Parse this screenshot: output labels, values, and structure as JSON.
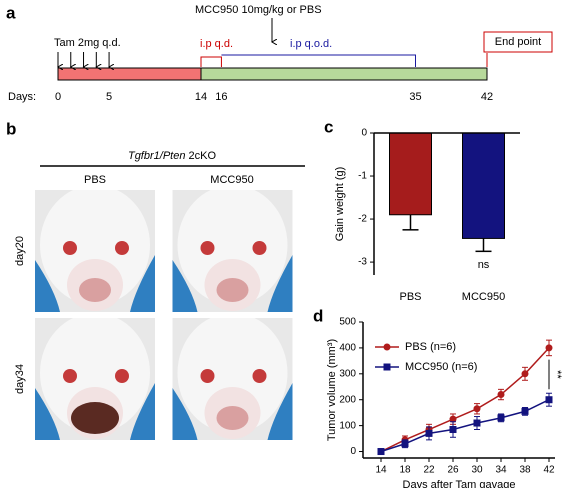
{
  "panel_a": {
    "label": "a",
    "treatment_label": "MCC950 10mg/kg or PBS",
    "tam_label": "Tam 2mg q.d.",
    "ip_qd": "i.p q.d.",
    "ip_qod": "i.p q.o.d.",
    "end_point": "End point",
    "days_label": "Days:",
    "days": [
      0,
      5,
      14,
      16,
      35,
      42
    ]
  },
  "panel_b": {
    "label": "b",
    "genotype_italic": "Tgfbr1/Pten",
    "genotype_suffix": "2cKO",
    "columns": [
      "PBS",
      "MCC950"
    ],
    "rows": [
      "day20",
      "day34"
    ]
  },
  "chart_data": [
    {
      "type": "bar",
      "panel_label": "c",
      "ylabel": "Gain weight (g)",
      "categories": [
        "PBS",
        "MCC950"
      ],
      "values": [
        -1.9,
        -2.45
      ],
      "errors": [
        0.35,
        0.3
      ],
      "colors": [
        "#a51c1c",
        "#13137f"
      ],
      "ylim": [
        -3.3,
        0
      ],
      "yticks": [
        0,
        -1,
        -2,
        -3
      ],
      "annotation": "ns"
    },
    {
      "type": "line",
      "panel_label": "d",
      "xlabel": "Days after Tam gavage",
      "ylabel": "Tumor volume (mm³)",
      "x": [
        14,
        18,
        22,
        26,
        30,
        34,
        38,
        42
      ],
      "series": [
        {
          "name": "PBS (n=6)",
          "color": "#b01c1c",
          "marker": "circle",
          "values": [
            0,
            45,
            85,
            125,
            165,
            220,
            300,
            400
          ],
          "errors": [
            5,
            15,
            20,
            20,
            20,
            20,
            25,
            30
          ]
        },
        {
          "name": "MCC950 (n=6)",
          "color": "#13137f",
          "marker": "square",
          "values": [
            0,
            30,
            70,
            85,
            110,
            130,
            155,
            200
          ],
          "errors": [
            5,
            15,
            25,
            30,
            25,
            15,
            15,
            25
          ]
        }
      ],
      "xlim": [
        11,
        43
      ],
      "ylim": [
        -25,
        500
      ],
      "xticks": [
        14,
        18,
        22,
        26,
        30,
        34,
        38,
        42
      ],
      "yticks": [
        0,
        100,
        200,
        300,
        400,
        500
      ],
      "annotation": "**"
    }
  ]
}
